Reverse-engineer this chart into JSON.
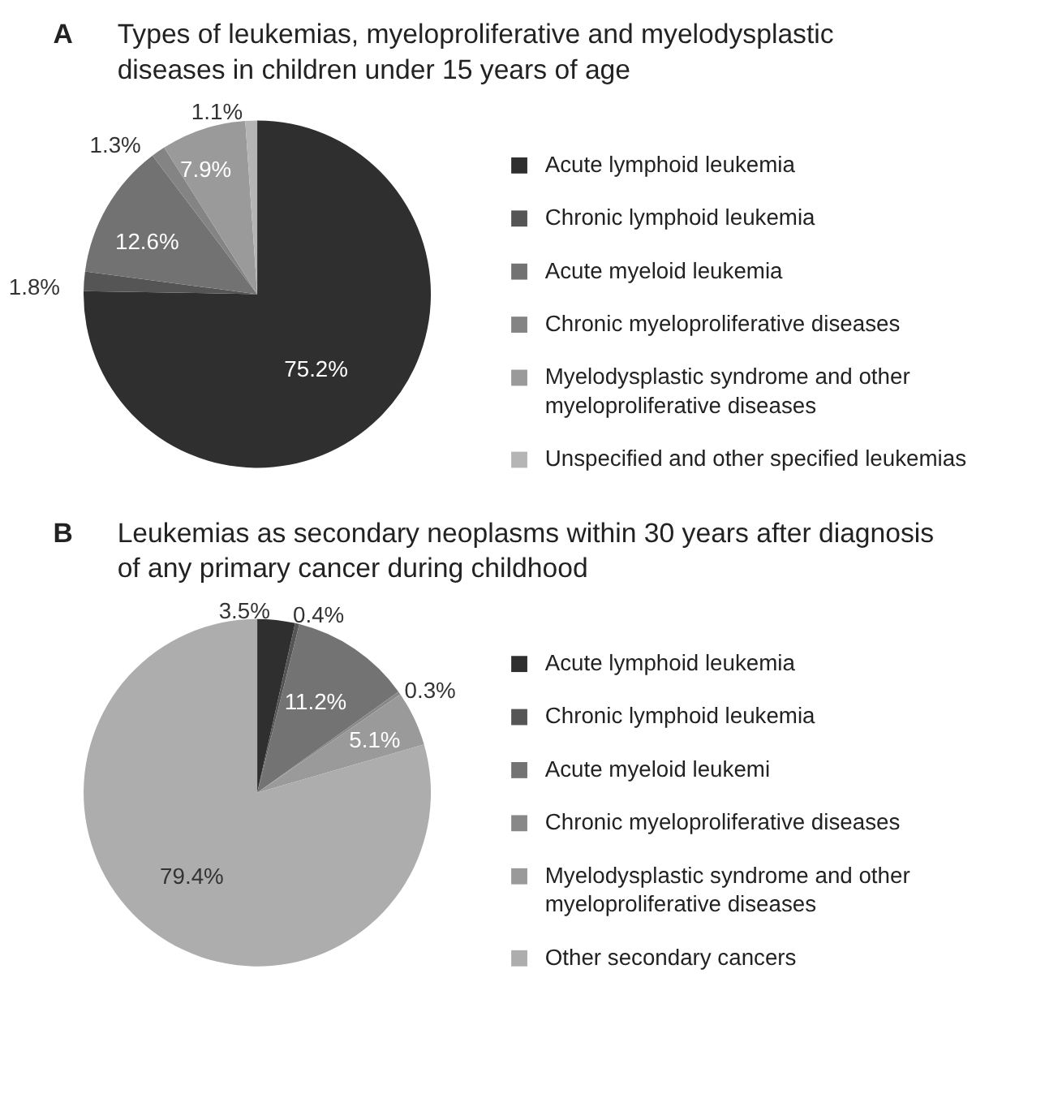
{
  "chart_data": [
    {
      "type": "pie",
      "annotations": [
        "A"
      ],
      "title": "Types of leukemias, myeloproliferative and myelodysplastic diseases in children under 15 years of age",
      "categories": [
        "Acute lymphoid leukemia",
        "Chronic lymphoid leukemia",
        "Acute myeloid leukemia",
        "Chronic myeloproliferative diseases",
        "Myelodysplastic syndrome and other myeloproliferative diseases",
        "Unspecified and other specified leukemias"
      ],
      "values": [
        75.2,
        1.8,
        12.6,
        1.3,
        7.9,
        1.1
      ],
      "value_labels": [
        "75.2%",
        "1.8%",
        "12.6%",
        "1.3%",
        "7.9%",
        "1.1%"
      ],
      "colors": [
        "#2f2f2f",
        "#555555",
        "#727272",
        "#848484",
        "#9a9a9a",
        "#b5b5b5"
      ],
      "legend": "right"
    },
    {
      "type": "pie",
      "annotations": [
        "B"
      ],
      "title": "Leukemias as secondary neoplasms within 30 years after diagnosis of any primary cancer during childhood",
      "categories": [
        "Acute lymphoid leukemia",
        "Chronic lymphoid leukemia",
        "Acute myeloid leukemi",
        "Chronic myeloproliferative diseases",
        "Myelodysplastic syndrome and other myeloproliferative diseases",
        "Other secondary cancers"
      ],
      "values": [
        3.5,
        0.4,
        11.2,
        0.3,
        5.1,
        79.4
      ],
      "value_labels": [
        "3.5%",
        "0.4%",
        "11.2%",
        "0.3%",
        "5.1%",
        "79.4%"
      ],
      "colors": [
        "#2f2f2f",
        "#555555",
        "#737373",
        "#888888",
        "#9a9a9a",
        "#adadad"
      ],
      "legend": "right"
    }
  ]
}
